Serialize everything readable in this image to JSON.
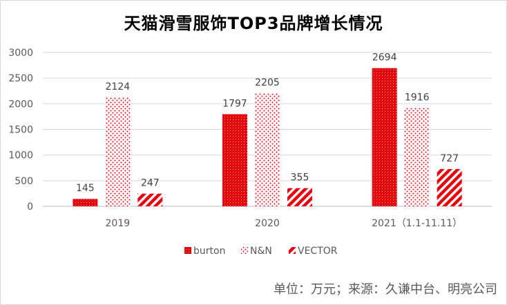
{
  "chart_data": {
    "type": "bar",
    "title": "天猫滑雪服饰TOP3品牌增长情况",
    "categories": [
      "2019",
      "2020",
      "2021（1.1-11.11）"
    ],
    "series": [
      {
        "name": "burton",
        "values": [
          145,
          1797,
          2694
        ],
        "color": "#e8000b",
        "pattern": "solid-speckle"
      },
      {
        "name": "N&N",
        "values": [
          2124,
          2205,
          1916
        ],
        "color": "#e8000b",
        "pattern": "dots"
      },
      {
        "name": "VECTOR",
        "values": [
          247,
          355,
          727
        ],
        "color": "#e8000b",
        "pattern": "diagonal-stripes"
      }
    ],
    "yticks": [
      "0",
      "500",
      "1000",
      "1500",
      "2000",
      "2500",
      "3000"
    ],
    "ylim": [
      0,
      3000
    ],
    "xlabel": "",
    "ylabel": "",
    "grid": true,
    "legend_position": "bottom"
  },
  "footer": {
    "source": "单位：万元；来源：久谦中台、明亮公司"
  }
}
